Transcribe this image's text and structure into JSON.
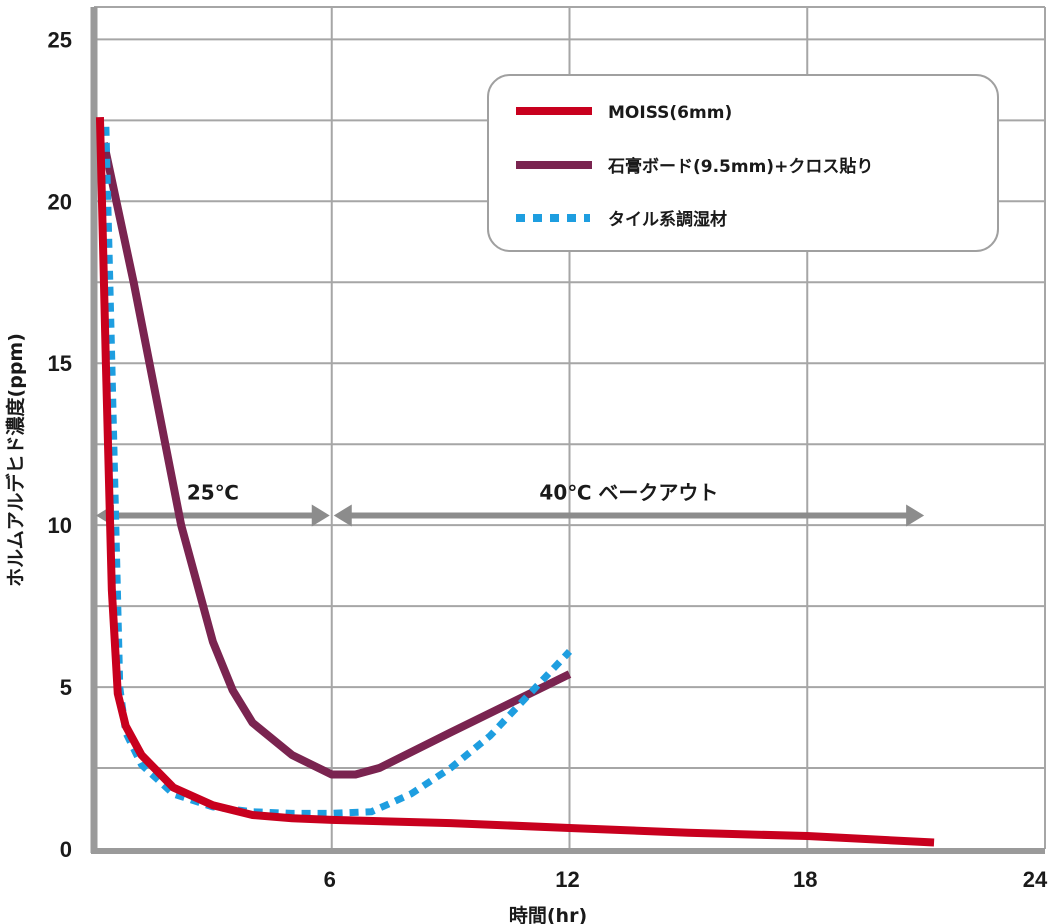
{
  "chart_data": {
    "type": "line",
    "title": "",
    "xlabel": "時間(hr)",
    "ylabel": "ホルムアルデヒド濃度(ppm)",
    "xlim": [
      0,
      24
    ],
    "ylim": [
      0,
      26
    ],
    "xticks": [
      6,
      12,
      18,
      24
    ],
    "xtick_labels": [
      "6",
      "12",
      "18",
      "24"
    ],
    "yticks": [
      0,
      5,
      10,
      15,
      20,
      25
    ],
    "ytick_labels": [
      "0",
      "5",
      "10",
      "15",
      "20",
      "25"
    ],
    "grid": true,
    "legend_position": "top-right",
    "series": [
      {
        "name": "MOISS(6mm)",
        "color": "#c8001e",
        "style": "solid",
        "x": [
          0.15,
          0.3,
          0.45,
          0.6,
          0.8,
          1.2,
          2,
          3,
          4,
          5,
          6,
          9,
          12,
          15,
          18,
          21.2
        ],
        "y": [
          22.6,
          15,
          8,
          4.8,
          3.8,
          2.9,
          1.9,
          1.35,
          1.05,
          0.95,
          0.9,
          0.8,
          0.65,
          0.5,
          0.4,
          0.2
        ]
      },
      {
        "name": "石膏ボード(9.5mm)+クロス貼り",
        "color": "#7a2450",
        "style": "solid",
        "x": [
          0.25,
          1,
          2.2,
          3,
          3.5,
          4,
          5,
          6,
          6.6,
          7.2,
          9,
          12
        ],
        "y": [
          21.8,
          17.5,
          10,
          6.4,
          4.9,
          3.9,
          2.9,
          2.3,
          2.3,
          2.5,
          3.6,
          5.4
        ]
      },
      {
        "name": "タイル系調湿材",
        "color": "#1e9ee0",
        "style": "dotted",
        "x": [
          0.3,
          0.45,
          0.55,
          0.65,
          0.8,
          1.2,
          2,
          3,
          4,
          5,
          6,
          7,
          8,
          9,
          10,
          11,
          12
        ],
        "y": [
          22.3,
          15,
          10,
          5,
          3.6,
          2.6,
          1.7,
          1.3,
          1.15,
          1.1,
          1.1,
          1.15,
          1.7,
          2.5,
          3.5,
          4.8,
          6.1
        ]
      }
    ],
    "annotations": [
      {
        "text": "25℃",
        "x_from": 0,
        "x_to": 6,
        "y": 10.3
      },
      {
        "text": "40℃ ベークアウト",
        "x_from": 6,
        "x_to": 21,
        "y": 10.3
      }
    ]
  },
  "colors": {
    "grid": "#a6a6a6",
    "axis": "#9a9a9a",
    "arrow": "#8c8c8c"
  }
}
